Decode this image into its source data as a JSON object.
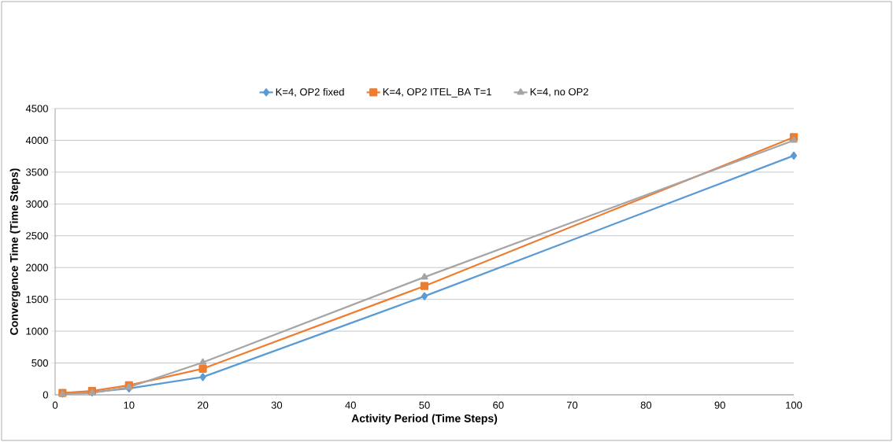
{
  "chart_data": {
    "type": "line",
    "xlabel": "Activity Period  (Time Steps)",
    "ylabel": "Convergence Time (Time Steps)",
    "x": [
      1,
      5,
      10,
      20,
      50,
      100
    ],
    "series": [
      {
        "name": "K=4, OP2 fixed",
        "color": "#5b9bd5",
        "marker": "diamond",
        "values": [
          20,
          40,
          100,
          280,
          1550,
          3760
        ]
      },
      {
        "name": "K=4, OP2 ITEL_BA T=1",
        "color": "#ed7d31",
        "marker": "square",
        "values": [
          30,
          60,
          150,
          410,
          1710,
          4050
        ]
      },
      {
        "name": "K=4, no OP2",
        "color": "#a5a5a5",
        "marker": "triangle",
        "values": [
          10,
          30,
          120,
          510,
          1850,
          4000
        ]
      }
    ],
    "xlim": [
      0,
      100
    ],
    "xticks": [
      0,
      10,
      20,
      30,
      40,
      50,
      60,
      70,
      80,
      90,
      100
    ],
    "ylim": [
      0,
      4500
    ],
    "yticks": [
      0,
      500,
      1000,
      1500,
      2000,
      2500,
      3000,
      3500,
      4000,
      4500
    ],
    "grid": "y",
    "legend": "top",
    "line_style": "solid"
  }
}
